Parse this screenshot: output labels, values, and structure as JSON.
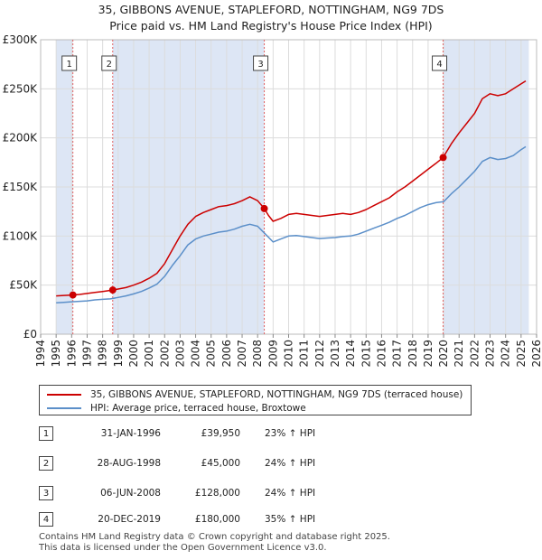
{
  "title_line1": "35, GIBBONS AVENUE, STAPLEFORD, NOTTINGHAM, NG9 7DS",
  "title_line2": "Price paid vs. HM Land Registry's House Price Index (HPI)",
  "colors": {
    "property": "#cc0000",
    "hpi": "#5b8fc9",
    "shade": "#dde6f5",
    "vline": "#e06060"
  },
  "chart_data": {
    "type": "line",
    "xlim": [
      1994,
      2026
    ],
    "ylim": [
      0,
      300000
    ],
    "yticks": [
      0,
      50000,
      100000,
      150000,
      200000,
      250000,
      300000
    ],
    "ytick_labels": [
      "£0",
      "£50K",
      "£100K",
      "£150K",
      "£200K",
      "£250K",
      "£300K"
    ],
    "xticks": [
      1994,
      1995,
      1996,
      1997,
      1998,
      1999,
      2000,
      2001,
      2002,
      2003,
      2004,
      2005,
      2006,
      2007,
      2008,
      2009,
      2010,
      2011,
      2012,
      2013,
      2014,
      2015,
      2016,
      2017,
      2018,
      2019,
      2020,
      2021,
      2022,
      2023,
      2024,
      2025,
      2026
    ],
    "grid": true,
    "series": [
      {
        "name": "35, GIBBONS AVENUE, STAPLEFORD, NOTTINGHAM, NG9 7DS (terraced house)",
        "points": [
          [
            1995.0,
            39000
          ],
          [
            1995.5,
            39500
          ],
          [
            1996.08,
            39950
          ],
          [
            1996.5,
            40500
          ],
          [
            1997.0,
            41500
          ],
          [
            1997.5,
            42500
          ],
          [
            1998.0,
            43500
          ],
          [
            1998.65,
            45000
          ],
          [
            1999.0,
            46000
          ],
          [
            1999.5,
            47500
          ],
          [
            2000.0,
            50000
          ],
          [
            2000.5,
            53000
          ],
          [
            2001.0,
            57000
          ],
          [
            2001.5,
            62000
          ],
          [
            2002.0,
            72000
          ],
          [
            2002.5,
            86000
          ],
          [
            2003.0,
            100000
          ],
          [
            2003.5,
            112000
          ],
          [
            2004.0,
            120000
          ],
          [
            2004.5,
            124000
          ],
          [
            2005.0,
            127000
          ],
          [
            2005.5,
            130000
          ],
          [
            2006.0,
            131000
          ],
          [
            2006.5,
            133000
          ],
          [
            2007.0,
            136000
          ],
          [
            2007.5,
            140000
          ],
          [
            2008.0,
            136000
          ],
          [
            2008.43,
            128000
          ],
          [
            2008.7,
            121000
          ],
          [
            2009.0,
            115000
          ],
          [
            2009.5,
            118000
          ],
          [
            2010.0,
            122000
          ],
          [
            2010.5,
            123000
          ],
          [
            2011.0,
            122000
          ],
          [
            2011.5,
            121000
          ],
          [
            2012.0,
            120000
          ],
          [
            2012.5,
            121000
          ],
          [
            2013.0,
            122000
          ],
          [
            2013.5,
            123000
          ],
          [
            2014.0,
            122000
          ],
          [
            2014.5,
            124000
          ],
          [
            2015.0,
            127000
          ],
          [
            2015.5,
            131000
          ],
          [
            2016.0,
            135000
          ],
          [
            2016.5,
            139000
          ],
          [
            2017.0,
            145000
          ],
          [
            2017.5,
            150000
          ],
          [
            2018.0,
            156000
          ],
          [
            2018.5,
            162000
          ],
          [
            2019.0,
            168000
          ],
          [
            2019.5,
            174000
          ],
          [
            2019.97,
            180000
          ],
          [
            2020.5,
            194000
          ],
          [
            2021.0,
            205000
          ],
          [
            2021.5,
            215000
          ],
          [
            2022.0,
            225000
          ],
          [
            2022.5,
            240000
          ],
          [
            2023.0,
            245000
          ],
          [
            2023.5,
            243000
          ],
          [
            2024.0,
            245000
          ],
          [
            2024.5,
            250000
          ],
          [
            2025.0,
            255000
          ],
          [
            2025.3,
            258000
          ]
        ]
      },
      {
        "name": "HPI: Average price, terraced house, Broxtowe",
        "points": [
          [
            1995.0,
            32000
          ],
          [
            1995.5,
            32500
          ],
          [
            1996.0,
            33000
          ],
          [
            1996.5,
            33500
          ],
          [
            1997.0,
            34000
          ],
          [
            1997.5,
            35000
          ],
          [
            1998.0,
            35500
          ],
          [
            1998.5,
            36000
          ],
          [
            1999.0,
            37500
          ],
          [
            1999.5,
            39000
          ],
          [
            2000.0,
            41000
          ],
          [
            2000.5,
            43500
          ],
          [
            2001.0,
            47000
          ],
          [
            2001.5,
            51000
          ],
          [
            2002.0,
            59000
          ],
          [
            2002.5,
            70000
          ],
          [
            2003.0,
            80000
          ],
          [
            2003.5,
            91000
          ],
          [
            2004.0,
            97000
          ],
          [
            2004.5,
            100000
          ],
          [
            2005.0,
            102000
          ],
          [
            2005.5,
            104000
          ],
          [
            2006.0,
            105000
          ],
          [
            2006.5,
            107000
          ],
          [
            2007.0,
            110000
          ],
          [
            2007.5,
            112000
          ],
          [
            2008.0,
            110000
          ],
          [
            2008.5,
            102000
          ],
          [
            2009.0,
            94000
          ],
          [
            2009.5,
            97000
          ],
          [
            2010.0,
            100000
          ],
          [
            2010.5,
            100500
          ],
          [
            2011.0,
            99500
          ],
          [
            2011.5,
            98500
          ],
          [
            2012.0,
            97500
          ],
          [
            2012.5,
            98000
          ],
          [
            2013.0,
            98500
          ],
          [
            2013.5,
            99500
          ],
          [
            2014.0,
            100000
          ],
          [
            2014.5,
            102000
          ],
          [
            2015.0,
            105000
          ],
          [
            2015.5,
            108000
          ],
          [
            2016.0,
            111000
          ],
          [
            2016.5,
            114000
          ],
          [
            2017.0,
            118000
          ],
          [
            2017.5,
            121000
          ],
          [
            2018.0,
            125000
          ],
          [
            2018.5,
            129000
          ],
          [
            2019.0,
            132000
          ],
          [
            2019.5,
            134000
          ],
          [
            2020.0,
            135000
          ],
          [
            2020.5,
            143000
          ],
          [
            2021.0,
            150000
          ],
          [
            2021.5,
            158000
          ],
          [
            2022.0,
            166000
          ],
          [
            2022.5,
            176000
          ],
          [
            2023.0,
            180000
          ],
          [
            2023.5,
            178000
          ],
          [
            2024.0,
            179000
          ],
          [
            2024.5,
            182000
          ],
          [
            2025.0,
            188000
          ],
          [
            2025.3,
            191000
          ]
        ]
      }
    ],
    "sales": [
      {
        "label": "1",
        "x": 1996.08,
        "price": 39950
      },
      {
        "label": "2",
        "x": 1998.65,
        "price": 45000
      },
      {
        "label": "3",
        "x": 2008.43,
        "price": 128000
      },
      {
        "label": "4",
        "x": 2019.97,
        "price": 180000
      }
    ],
    "shaded_ranges": [
      [
        1995.0,
        1996.08
      ],
      [
        1998.65,
        2008.43
      ],
      [
        2019.97,
        2025.5
      ]
    ]
  },
  "legend": {
    "property_label": "35, GIBBONS AVENUE, STAPLEFORD, NOTTINGHAM, NG9 7DS (terraced house)",
    "hpi_label": "HPI: Average price, terraced house, Broxtowe"
  },
  "transactions": [
    {
      "num": "1",
      "date": "31-JAN-1996",
      "price": "£39,950",
      "hpi": "23% ↑ HPI"
    },
    {
      "num": "2",
      "date": "28-AUG-1998",
      "price": "£45,000",
      "hpi": "24% ↑ HPI"
    },
    {
      "num": "3",
      "date": "06-JUN-2008",
      "price": "£128,000",
      "hpi": "24% ↑ HPI"
    },
    {
      "num": "4",
      "date": "20-DEC-2019",
      "price": "£180,000",
      "hpi": "35% ↑ HPI"
    }
  ],
  "footer_line1": "Contains HM Land Registry data © Crown copyright and database right 2025.",
  "footer_line2": "This data is licensed under the Open Government Licence v3.0."
}
